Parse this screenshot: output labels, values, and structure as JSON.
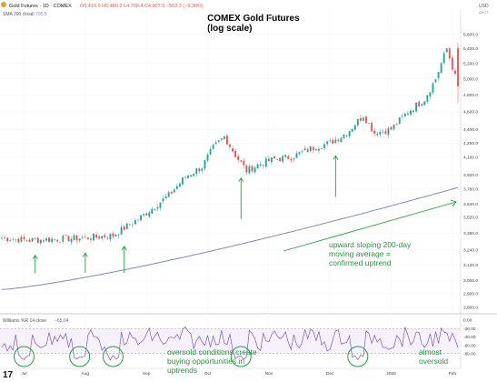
{
  "header": {
    "symbol_line": "Gold Futures · 1D · COMEX",
    "ohlc": "O5,410.0 H5,480.2 L4,700.4 C4,907.5 −503.3 (−9.30%)",
    "sma_label": "SMA 200 close",
    "sma_value": "3,795.5",
    "currency": "USD",
    "currency_sub": "ΔPCT"
  },
  "title": {
    "line1": "COMEX Gold Futures",
    "line2": "(log scale)"
  },
  "annotations": {
    "uptrend_line1": "upward sloping 200-day",
    "uptrend_line2": "moving average =",
    "uptrend_line3": "confirmed uptrend",
    "oversold_line1": "oversold conditions create",
    "oversold_line2": "buying opportunities in",
    "oversold_line3": "uptrends",
    "almost_line1": "almost",
    "almost_line2": "oversold"
  },
  "osc_header": {
    "label": "Williams %R 14 close",
    "value": "−65.04"
  },
  "colors": {
    "up": "#26a69a",
    "down": "#ef5350",
    "sma": "#7f8bb5",
    "osc": "#7e57c2",
    "green_annot": "#23a040"
  },
  "chart_data": [
    {
      "type": "candlestick",
      "title": "COMEX Gold Futures",
      "subtitle": "(log scale)",
      "scale": "log",
      "ylim": [
        2800,
        5700
      ],
      "y_ticks": [
        2800,
        2900,
        3000,
        3120,
        3240,
        3380,
        3520,
        3640,
        3780,
        3920,
        4100,
        4250,
        4400,
        4600,
        4800,
        5000,
        5200,
        5400,
        5600
      ],
      "y_tick_labels": [
        "2,800.0",
        "2,900.0",
        "3,000.0",
        "3,120.0",
        "3,240.0",
        "3,380.0",
        "3,520.0",
        "3,640.0",
        "3,780.0",
        "3,920.0",
        "4,100.0",
        "4,250.0",
        "4,400.0",
        "4,600.0",
        "4,800.0",
        "5,000.0",
        "5,200.0",
        "5,400.0",
        "5,600.0"
      ],
      "x_labels": [
        "Jul",
        "Aug",
        "Sep",
        "Oct",
        "Nov",
        "Dec",
        "2026",
        "Feb"
      ],
      "x_label_index": [
        8,
        30,
        52,
        74,
        96,
        118,
        140,
        162
      ],
      "price_anchors": [
        [
          0,
          3340
        ],
        [
          10,
          3320
        ],
        [
          20,
          3330
        ],
        [
          30,
          3340
        ],
        [
          40,
          3360
        ],
        [
          50,
          3520
        ],
        [
          60,
          3720
        ],
        [
          66,
          3900
        ],
        [
          72,
          4000
        ],
        [
          76,
          4200
        ],
        [
          80,
          4320
        ],
        [
          84,
          4120
        ],
        [
          88,
          3960
        ],
        [
          92,
          4020
        ],
        [
          98,
          4080
        ],
        [
          104,
          4100
        ],
        [
          112,
          4200
        ],
        [
          118,
          4250
        ],
        [
          124,
          4360
        ],
        [
          130,
          4560
        ],
        [
          134,
          4360
        ],
        [
          140,
          4400
        ],
        [
          146,
          4600
        ],
        [
          152,
          4750
        ],
        [
          156,
          5000
        ],
        [
          160,
          5400
        ],
        [
          164,
          4907.5
        ]
      ],
      "sma_200": {
        "name": "SMA 200 close",
        "start": 2930,
        "end": 3795.5
      },
      "arrow_candles": [
        12,
        30,
        44,
        86,
        120
      ]
    },
    {
      "type": "line",
      "title": "Williams %R 14 close",
      "last_value": -65.04,
      "ylim": [
        -100,
        0
      ],
      "y_tick_labels": [
        "0.00",
        "-20.00",
        "-40.00",
        "-60.00",
        "-80.00"
      ],
      "reference_lines": [
        -20,
        -80
      ],
      "oversold_circles": [
        8,
        28,
        40,
        86,
        128
      ]
    }
  ]
}
